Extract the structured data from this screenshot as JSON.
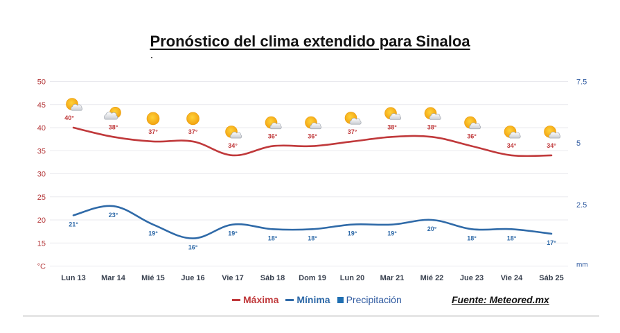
{
  "title": "Pronóstico del clima extendido para Sinaloa",
  "source": "Fuente: Meteored.mx",
  "legend": {
    "max_label": "Máxima",
    "min_label": "Mínima",
    "precip_label": "Precipitación"
  },
  "colors": {
    "max": "#c0393b",
    "min": "#2f6aa8",
    "precip": "#1f6fb2",
    "left_axis": "#b5393b",
    "right_axis": "#2f5aa0"
  },
  "chart_data": {
    "type": "line",
    "categories": [
      "Lun 13",
      "Mar 14",
      "Mié 15",
      "Jue 16",
      "Vie 17",
      "Sáb 18",
      "Dom 19",
      "Lun 20",
      "Mar 21",
      "Mié 22",
      "Jue 23",
      "Vie 24",
      "Sáb 25"
    ],
    "series": [
      {
        "name": "Máxima",
        "values": [
          40,
          38,
          37,
          37,
          34,
          36,
          36,
          37,
          38,
          38,
          36,
          34,
          34
        ]
      },
      {
        "name": "Mínima",
        "values": [
          21,
          23,
          19,
          16,
          19,
          18,
          18,
          19,
          19,
          20,
          18,
          18,
          17
        ]
      }
    ],
    "icons": [
      "sun-cloud-icon",
      "cloud-sun-icon",
      "sun-icon",
      "sun-icon",
      "sun-cloud-icon",
      "sun-cloud-icon",
      "sun-cloud-icon",
      "sun-cloud-icon",
      "sun-cloud-icon",
      "sun-cloud-icon",
      "sun-cloud-icon",
      "sun-cloud-icon",
      "sun-cloud-icon"
    ],
    "y_left": {
      "unit": "°C",
      "ticks": [
        15,
        20,
        25,
        30,
        35,
        40,
        45,
        50
      ],
      "range": [
        10,
        50
      ]
    },
    "y_right": {
      "unit": "mm",
      "ticks": [
        "2.5",
        "5",
        "7.5"
      ],
      "range": [
        0,
        7.5
      ]
    },
    "grid": true,
    "legend_position": "bottom"
  }
}
